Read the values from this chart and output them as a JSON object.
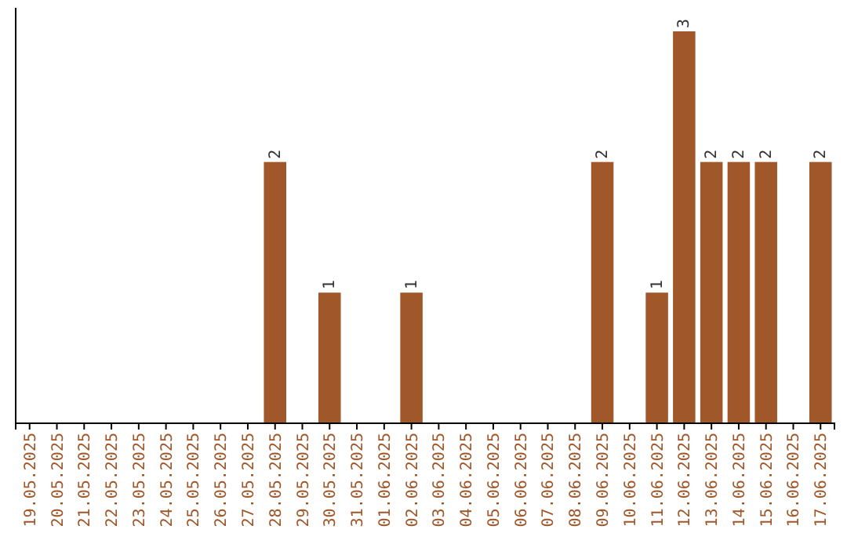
{
  "chart_data": {
    "type": "bar",
    "categories": [
      "19.05.2025",
      "20.05.2025",
      "21.05.2025",
      "22.05.2025",
      "23.05.2025",
      "24.05.2025",
      "25.05.2025",
      "26.05.2025",
      "27.05.2025",
      "28.05.2025",
      "29.05.2025",
      "30.05.2025",
      "31.05.2025",
      "01.06.2025",
      "02.06.2025",
      "03.06.2025",
      "04.06.2025",
      "05.06.2025",
      "06.06.2025",
      "07.06.2025",
      "08.06.2025",
      "09.06.2025",
      "10.06.2025",
      "11.06.2025",
      "12.06.2025",
      "13.06.2025",
      "14.06.2025",
      "15.06.2025",
      "16.06.2025",
      "17.06.2025"
    ],
    "values": [
      0,
      0,
      0,
      0,
      0,
      0,
      0,
      0,
      0,
      2,
      0,
      1,
      0,
      0,
      1,
      0,
      0,
      0,
      0,
      0,
      0,
      2,
      0,
      1,
      3,
      2,
      2,
      2,
      0,
      2
    ],
    "value_labels": [
      null,
      null,
      null,
      null,
      null,
      null,
      null,
      null,
      null,
      "2",
      null,
      "1",
      null,
      null,
      "1",
      null,
      null,
      null,
      null,
      null,
      null,
      "2",
      null,
      "1",
      "3",
      "2",
      "2",
      "2",
      null,
      "2"
    ],
    "color": "#a0572a",
    "ylim": [
      0,
      3.18
    ],
    "tick_labels": "x"
  }
}
